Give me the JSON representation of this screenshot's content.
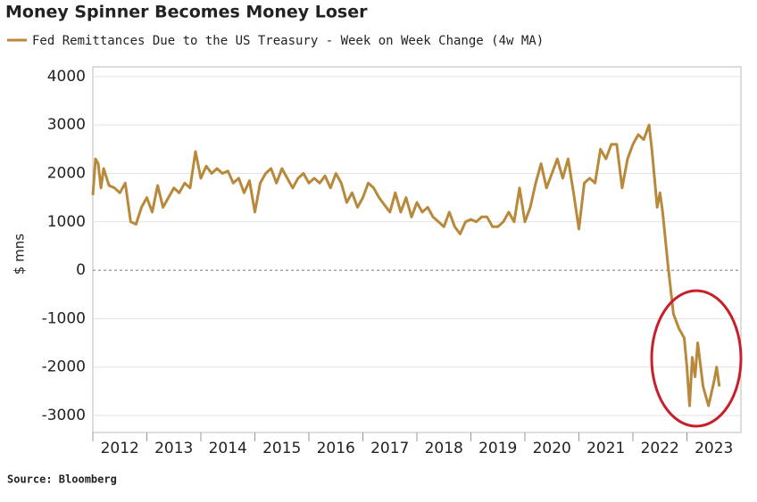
{
  "chart_data": {
    "type": "line",
    "title": "Money Spinner Becomes Money Loser",
    "y_label": "$ mns",
    "source": "Source: Bloomberg",
    "xlim": [
      2012,
      2024
    ],
    "xticks": [
      2012,
      2013,
      2014,
      2015,
      2016,
      2017,
      2018,
      2019,
      2020,
      2021,
      2022,
      2023
    ],
    "ylim": [
      -3350,
      4200
    ],
    "yticks": [
      -3000,
      -2000,
      -1000,
      0,
      1000,
      2000,
      3000,
      4000
    ],
    "grid": true,
    "series": [
      {
        "name": "Fed Remittances Due to the US Treasury - Week on Week Change (4w MA)",
        "color": "#b8893a",
        "x": [
          2012.0,
          2012.05,
          2012.1,
          2012.15,
          2012.2,
          2012.3,
          2012.4,
          2012.5,
          2012.6,
          2012.7,
          2012.8,
          2012.9,
          2013.0,
          2013.1,
          2013.2,
          2013.3,
          2013.4,
          2013.5,
          2013.6,
          2013.7,
          2013.8,
          2013.9,
          2014.0,
          2014.1,
          2014.2,
          2014.3,
          2014.4,
          2014.5,
          2014.6,
          2014.7,
          2014.8,
          2014.9,
          2015.0,
          2015.1,
          2015.2,
          2015.3,
          2015.4,
          2015.5,
          2015.6,
          2015.7,
          2015.8,
          2015.9,
          2016.0,
          2016.1,
          2016.2,
          2016.3,
          2016.4,
          2016.5,
          2016.6,
          2016.7,
          2016.8,
          2016.9,
          2017.0,
          2017.1,
          2017.2,
          2017.3,
          2017.4,
          2017.5,
          2017.6,
          2017.7,
          2017.8,
          2017.9,
          2018.0,
          2018.1,
          2018.2,
          2018.3,
          2018.4,
          2018.5,
          2018.6,
          2018.7,
          2018.8,
          2018.9,
          2019.0,
          2019.1,
          2019.2,
          2019.3,
          2019.4,
          2019.5,
          2019.6,
          2019.7,
          2019.8,
          2019.9,
          2020.0,
          2020.1,
          2020.2,
          2020.3,
          2020.4,
          2020.5,
          2020.6,
          2020.7,
          2020.8,
          2020.9,
          2021.0,
          2021.1,
          2021.2,
          2021.3,
          2021.4,
          2021.5,
          2021.6,
          2021.7,
          2021.8,
          2021.9,
          2022.0,
          2022.1,
          2022.2,
          2022.3,
          2022.35,
          2022.45,
          2022.5,
          2022.55,
          2022.65,
          2022.75,
          2022.85,
          2022.95,
          2023.0,
          2023.05,
          2023.1,
          2023.15,
          2023.2,
          2023.3,
          2023.4,
          2023.5,
          2023.55,
          2023.6
        ],
        "values": [
          1550,
          2300,
          2200,
          1700,
          2100,
          1750,
          1700,
          1600,
          1800,
          1000,
          950,
          1300,
          1500,
          1200,
          1750,
          1300,
          1500,
          1700,
          1600,
          1800,
          1700,
          2450,
          1900,
          2150,
          2000,
          2100,
          2000,
          2050,
          1800,
          1900,
          1600,
          1850,
          1200,
          1800,
          2000,
          2100,
          1800,
          2100,
          1900,
          1700,
          1900,
          2000,
          1800,
          1900,
          1800,
          1950,
          1700,
          2000,
          1800,
          1400,
          1600,
          1300,
          1500,
          1800,
          1700,
          1500,
          1350,
          1200,
          1600,
          1200,
          1500,
          1100,
          1400,
          1200,
          1300,
          1100,
          1000,
          900,
          1200,
          900,
          750,
          1000,
          1050,
          1000,
          1100,
          1100,
          900,
          900,
          1000,
          1200,
          1000,
          1700,
          1000,
          1300,
          1800,
          2200,
          1700,
          2000,
          2300,
          1900,
          2300,
          1600,
          850,
          1800,
          1900,
          1800,
          2500,
          2300,
          2600,
          2600,
          1700,
          2300,
          2600,
          2800,
          2700,
          3000,
          2500,
          1300,
          1600,
          1200,
          100,
          -900,
          -1200,
          -1400,
          -2000,
          -2800,
          -1800,
          -2200,
          -1500,
          -2400,
          -2800,
          -2300,
          -2000,
          -2400
        ]
      }
    ]
  }
}
